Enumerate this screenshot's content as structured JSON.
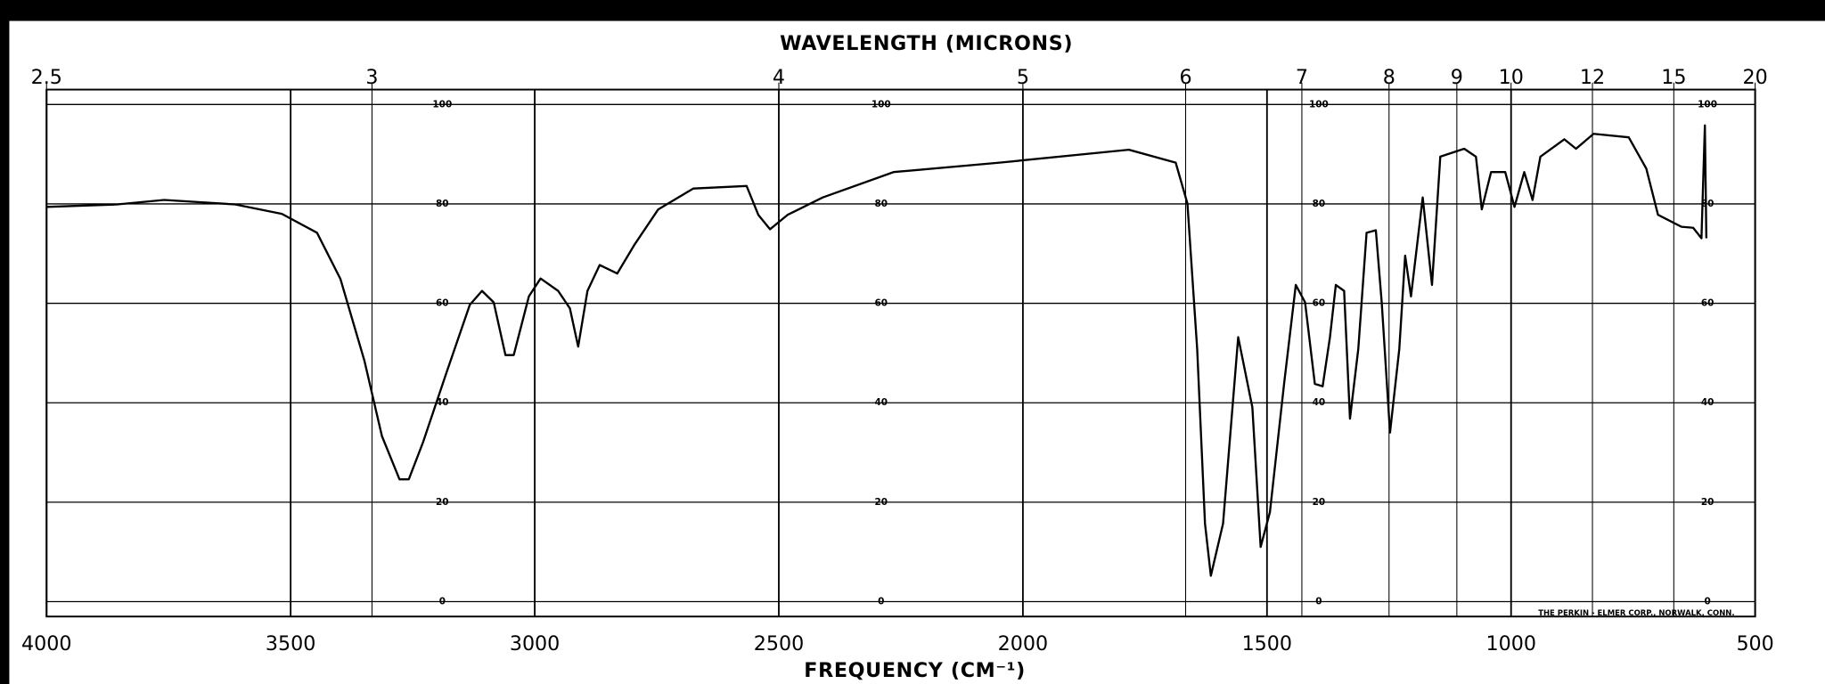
{
  "chart_data": {
    "type": "line",
    "x2label": "WAVELENGTH (MICRONS)",
    "xlabel": "FREQUENCY (CM⁻¹)",
    "note": "THE PERKIN - ELMER CORP., NORWALK, CONN.",
    "x": [
      4000,
      3855,
      3759,
      3614,
      3518,
      3446,
      3398,
      3349,
      3313,
      3277,
      3258,
      3229,
      3181,
      3133,
      3108,
      3084,
      3060,
      3043,
      3012,
      2988,
      2952,
      2928,
      2911,
      2892,
      2867,
      2831,
      2795,
      2747,
      2675,
      2566,
      2542,
      2518,
      2482,
      2410,
      2265,
      2048,
      1783,
      1687,
      1663,
      1643,
      1627,
      1615,
      1590,
      1559,
      1530,
      1513,
      1494,
      1465,
      1441,
      1422,
      1402,
      1386,
      1371,
      1359,
      1342,
      1330,
      1313,
      1296,
      1277,
      1265,
      1248,
      1229,
      1217,
      1205,
      1181,
      1162,
      1145,
      1096,
      1072,
      1060,
      1041,
      1012,
      993,
      973,
      956,
      940,
      891,
      867,
      831,
      759,
      723,
      699,
      651,
      627,
      610,
      603,
      600
    ],
    "values": [
      79.4,
      79.9,
      80.8,
      79.9,
      78,
      74.2,
      64.9,
      48.5,
      33.3,
      24.6,
      24.6,
      32,
      46,
      59.7,
      62.5,
      60.2,
      49.6,
      49.6,
      61.4,
      65,
      62.5,
      59,
      51.3,
      62.5,
      67.7,
      66,
      71.9,
      78.9,
      83.1,
      83.6,
      77.8,
      74.9,
      77.8,
      81.3,
      86.4,
      88.3,
      90.9,
      88.3,
      80.1,
      50.8,
      15.7,
      5.2,
      15.7,
      53.2,
      39.1,
      11,
      18,
      43.8,
      63.7,
      60.2,
      43.8,
      43.3,
      53.2,
      63.7,
      62.5,
      36.8,
      50.8,
      74.2,
      74.7,
      60.2,
      34,
      50.8,
      69.6,
      61.4,
      81.3,
      63.7,
      89.5,
      91.1,
      89.5,
      78.9,
      86.4,
      86.4,
      79.4,
      86.4,
      80.8,
      89.5,
      93,
      91.1,
      94.1,
      93.4,
      87.1,
      77.8,
      75.4,
      75.2,
      73.1,
      95.8,
      73.1
    ],
    "color": "#000000",
    "xlim": [
      4000,
      500
    ],
    "xticks": [
      4000,
      3500,
      3000,
      2500,
      2000,
      1500,
      1000,
      500
    ],
    "x2ticks": [
      2.5,
      3,
      4,
      5,
      6,
      7,
      8,
      9,
      10,
      12,
      15,
      20
    ],
    "ylim": [
      -3,
      103
    ],
    "yticks": [
      0,
      20,
      40,
      60,
      80,
      100
    ],
    "grid": true
  }
}
